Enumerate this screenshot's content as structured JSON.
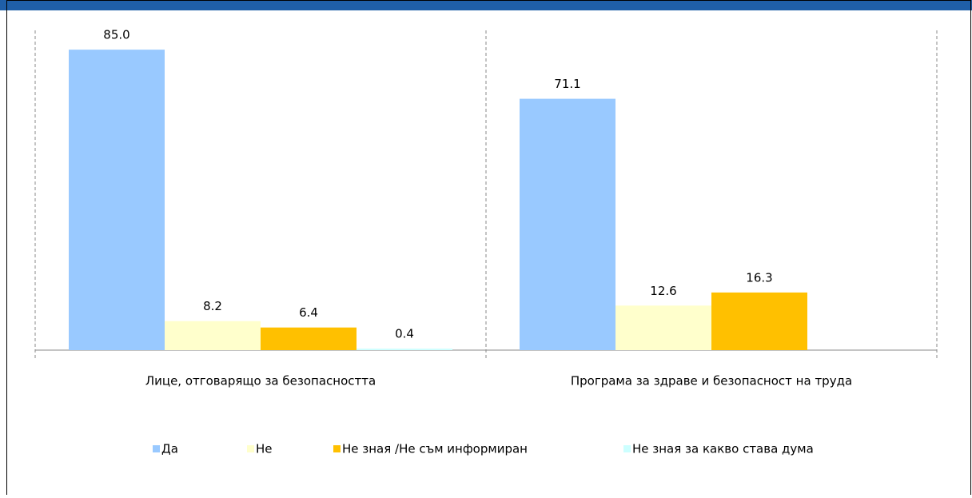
{
  "chart_data": {
    "type": "bar",
    "categories": [
      "Лице, отговарящо за безопасността",
      "Програма за здраве и безопасност на труда"
    ],
    "series": [
      {
        "name": "Да",
        "color": "#99c9ff",
        "values": [
          85.0,
          71.1
        ],
        "value_labels": [
          "85.0",
          "71.1"
        ]
      },
      {
        "name": "Не",
        "color": "#ffffcc",
        "values": [
          8.2,
          12.6
        ],
        "value_labels": [
          "8.2",
          "12.6"
        ]
      },
      {
        "name": "Не зная /Не съм информиран",
        "color": "#ffc000",
        "values": [
          6.4,
          16.3
        ],
        "value_labels": [
          "6.4",
          "16.3"
        ]
      },
      {
        "name": "Не зная за какво става дума",
        "color": "#ccffff",
        "values": [
          0.4,
          null
        ],
        "value_labels": [
          "0.4",
          null
        ]
      }
    ],
    "ylim": [
      0,
      90
    ],
    "legend": "bottom"
  }
}
